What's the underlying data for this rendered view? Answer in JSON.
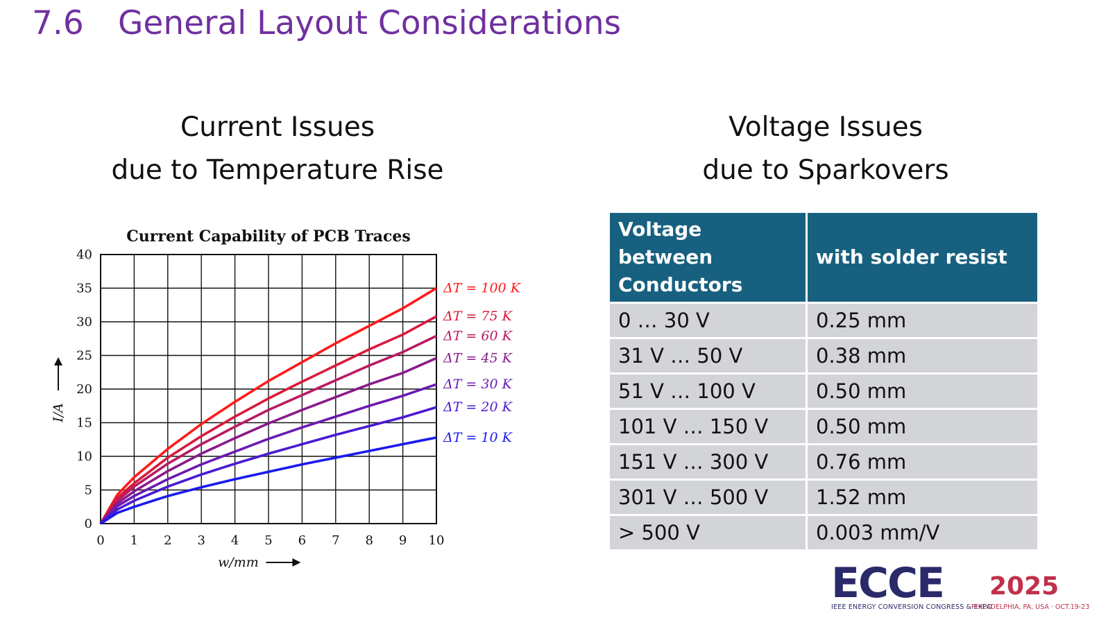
{
  "title": {
    "number": "7.6",
    "text": "General Layout Considerations"
  },
  "left_heading": {
    "line1": "Current Issues",
    "line2": "due to Temperature Rise"
  },
  "right_heading": {
    "line1": "Voltage Issues",
    "line2": "due to Sparkovers"
  },
  "chart_data": {
    "type": "line",
    "title": "Current Capability of PCB Traces",
    "xlabel": "w/mm",
    "ylabel": "I/A",
    "xlim": [
      0,
      10
    ],
    "ylim": [
      0,
      40
    ],
    "xticks": [
      0,
      1,
      2,
      3,
      4,
      5,
      6,
      7,
      8,
      9,
      10
    ],
    "yticks": [
      0,
      5,
      10,
      15,
      20,
      25,
      30,
      35,
      40
    ],
    "grid": true,
    "x": [
      0,
      0.5,
      1,
      2,
      3,
      4,
      5,
      6,
      7,
      8,
      9,
      10
    ],
    "series": [
      {
        "name": "ΔT = 100 K",
        "color": "#ff1a1a",
        "values": [
          0,
          4.3,
          6.9,
          11.1,
          14.8,
          18.1,
          21.2,
          24.0,
          26.8,
          29.4,
          32.0,
          35.0
        ]
      },
      {
        "name": "ΔT = 75 K",
        "color": "#d8193c",
        "values": [
          0,
          3.8,
          6.0,
          9.8,
          13.0,
          15.9,
          18.6,
          21.1,
          23.5,
          25.9,
          28.1,
          30.8
        ]
      },
      {
        "name": "ΔT = 60 K",
        "color": "#b81a62",
        "values": [
          0,
          3.4,
          5.5,
          8.9,
          11.8,
          14.4,
          16.9,
          19.1,
          21.3,
          23.5,
          25.5,
          27.9
        ]
      },
      {
        "name": "ΔT = 45 K",
        "color": "#8a1a8a",
        "values": [
          0,
          3.0,
          4.8,
          7.8,
          10.4,
          12.7,
          14.9,
          16.9,
          18.8,
          20.7,
          22.4,
          24.6
        ]
      },
      {
        "name": "ΔT = 30 K",
        "color": "#6a1ab2",
        "values": [
          0,
          2.6,
          4.1,
          6.6,
          8.8,
          10.7,
          12.6,
          14.3,
          15.9,
          17.5,
          19.0,
          20.7
        ]
      },
      {
        "name": "ΔT = 20 K",
        "color": "#4a1ad2",
        "values": [
          0,
          2.1,
          3.4,
          5.5,
          7.3,
          8.9,
          10.4,
          11.8,
          13.2,
          14.5,
          15.8,
          17.3
        ]
      },
      {
        "name": "ΔT = 10 K",
        "color": "#1a1aee",
        "values": [
          0,
          1.6,
          2.5,
          4.1,
          5.4,
          6.6,
          7.7,
          8.8,
          9.8,
          10.8,
          11.8,
          12.8
        ]
      }
    ]
  },
  "table": {
    "headers": [
      "Voltage between Conductors",
      "with solder resist"
    ],
    "rows": [
      [
        "0 … 30 V",
        "0.25 mm"
      ],
      [
        "31 V … 50 V",
        "0.38 mm"
      ],
      [
        "51 V … 100 V",
        "0.50 mm"
      ],
      [
        "101 V … 150 V",
        "0.50 mm"
      ],
      [
        "151 V … 300 V",
        "0.76 mm"
      ],
      [
        "301 V … 500 V",
        "1.52 mm"
      ],
      [
        "> 500 V",
        "0.003 mm/V"
      ]
    ]
  },
  "logo": {
    "brand": "ECCE",
    "year": "2025",
    "subtitle": "IEEE ENERGY CONVERSION CONGRESS & EXPO",
    "location": "PHILADELPHIA, PA, USA · OCT.19-23"
  }
}
